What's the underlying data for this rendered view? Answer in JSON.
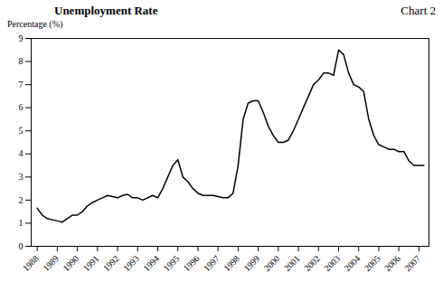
{
  "chart_data": {
    "type": "line",
    "title": "Unemployment Rate",
    "annotation": "Chart 2",
    "ylabel": "Percentage (%)",
    "color": "#000000",
    "grid": false,
    "xlim": [
      1987.7,
      2007.5
    ],
    "xticks": [
      1988,
      1989,
      1990,
      1991,
      1992,
      1993,
      1994,
      1995,
      1996,
      1997,
      1998,
      1999,
      2000,
      2001,
      2002,
      2003,
      2004,
      2005,
      2006,
      2007
    ],
    "ylim": [
      0,
      9
    ],
    "yticks": [
      0,
      1,
      2,
      3,
      4,
      5,
      6,
      7,
      8,
      9
    ],
    "x": [
      1988.0,
      1988.25,
      1988.5,
      1988.75,
      1989.0,
      1989.25,
      1989.5,
      1989.75,
      1990.0,
      1990.25,
      1990.5,
      1990.75,
      1991.0,
      1991.25,
      1991.5,
      1991.75,
      1992.0,
      1992.25,
      1992.5,
      1992.75,
      1993.0,
      1993.25,
      1993.5,
      1993.75,
      1994.0,
      1994.25,
      1994.5,
      1994.75,
      1995.0,
      1995.25,
      1995.5,
      1995.75,
      1996.0,
      1996.25,
      1996.5,
      1996.75,
      1997.0,
      1997.25,
      1997.5,
      1997.75,
      1998.0,
      1998.25,
      1998.5,
      1998.75,
      1999.0,
      1999.25,
      1999.5,
      1999.75,
      2000.0,
      2000.25,
      2000.5,
      2000.75,
      2001.0,
      2001.25,
      2001.5,
      2001.75,
      2002.0,
      2002.25,
      2002.5,
      2002.75,
      2003.0,
      2003.25,
      2003.5,
      2003.75,
      2004.0,
      2004.25,
      2004.5,
      2004.75,
      2005.0,
      2005.25,
      2005.5,
      2005.75,
      2006.0,
      2006.25,
      2006.5,
      2006.75,
      2007.0,
      2007.25
    ],
    "values": [
      1.65,
      1.35,
      1.2,
      1.15,
      1.1,
      1.05,
      1.2,
      1.35,
      1.35,
      1.5,
      1.75,
      1.9,
      2.0,
      2.1,
      2.2,
      2.15,
      2.1,
      2.2,
      2.25,
      2.1,
      2.1,
      2.0,
      2.1,
      2.2,
      2.1,
      2.5,
      3.0,
      3.5,
      3.75,
      3.0,
      2.8,
      2.5,
      2.3,
      2.2,
      2.2,
      2.2,
      2.15,
      2.1,
      2.1,
      2.3,
      3.5,
      5.5,
      6.2,
      6.3,
      6.3,
      5.8,
      5.2,
      4.8,
      4.5,
      4.5,
      4.6,
      5.0,
      5.5,
      6.0,
      6.5,
      7.0,
      7.2,
      7.5,
      7.5,
      7.4,
      8.5,
      8.3,
      7.5,
      7.0,
      6.9,
      6.7,
      5.5,
      4.8,
      4.4,
      4.3,
      4.2,
      4.2,
      4.1,
      4.1,
      3.7,
      3.5,
      3.5,
      3.5
    ]
  }
}
